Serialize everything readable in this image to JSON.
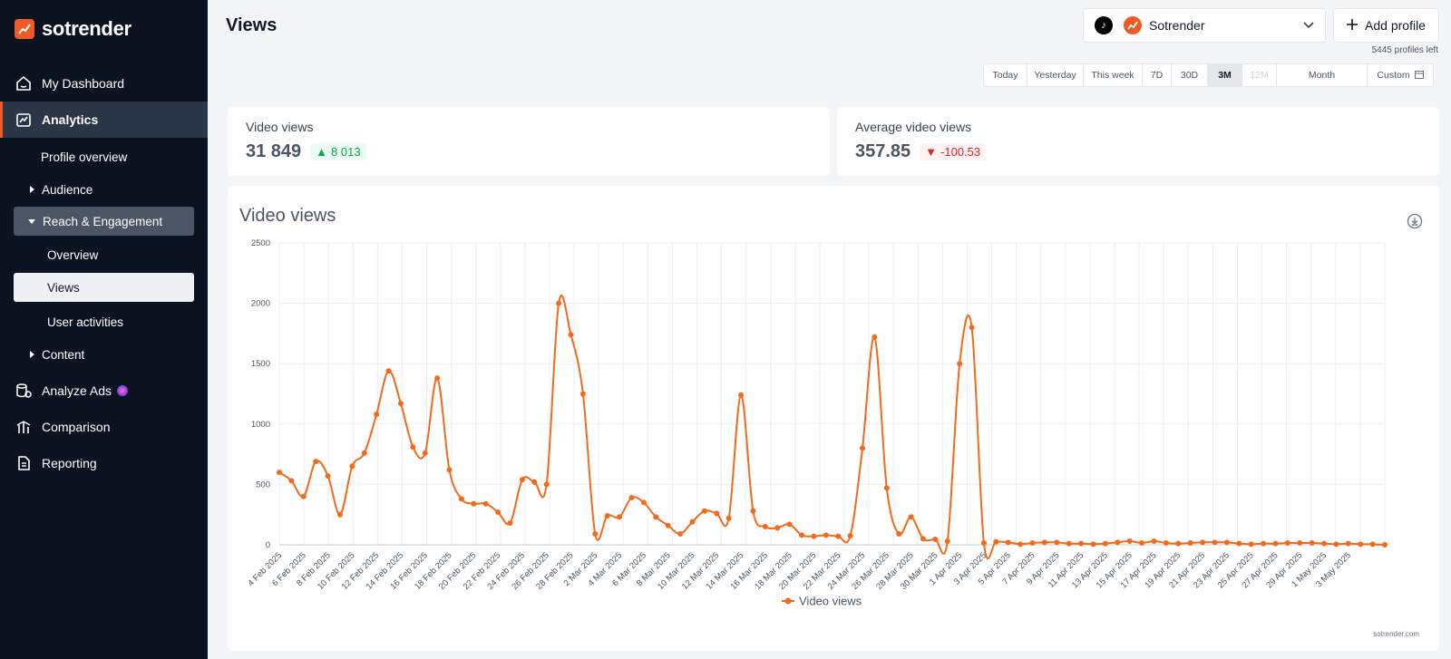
{
  "app": {
    "logo_text": "sotrender",
    "page_title": "Views"
  },
  "sidebar": {
    "items": [
      {
        "label": "My Dashboard",
        "icon": "home-icon"
      },
      {
        "label": "Analytics",
        "icon": "analytics-icon"
      },
      {
        "label": "Profile overview"
      },
      {
        "label": "Audience"
      },
      {
        "label": "Reach & Engagement"
      },
      {
        "label": "Overview"
      },
      {
        "label": "Views"
      },
      {
        "label": "User activities"
      },
      {
        "label": "Content"
      },
      {
        "label": "Analyze Ads",
        "icon": "ads-icon"
      },
      {
        "label": "Comparison",
        "icon": "comparison-icon"
      },
      {
        "label": "Reporting",
        "icon": "report-icon"
      }
    ]
  },
  "header": {
    "profile_name": "Sotrender",
    "add_profile_label": "Add profile",
    "profiles_left": "5445 profiles left",
    "ranges": [
      "Today",
      "Yesterday",
      "This week",
      "7D",
      "30D",
      "3M",
      "12M",
      "Month",
      "Custom"
    ],
    "selected_range": "3M",
    "disabled_range": "12M"
  },
  "kpis": {
    "video_views": {
      "label": "Video views",
      "value": "31 849",
      "change": "8 013"
    },
    "avg_video_views": {
      "label": "Average video views",
      "value": "357.85",
      "change": "-100.53"
    }
  },
  "colors": {
    "accent": "#f15a24",
    "series": "#f26a1b",
    "sidebar_bg": "#0b1220"
  },
  "chart_data": {
    "type": "line",
    "title": "Video views",
    "legend": [
      "Video views"
    ],
    "credit": "sotrender.com",
    "ylim": [
      0,
      2500
    ],
    "yticks": [
      0,
      500,
      1000,
      1500,
      2000,
      2500
    ],
    "xtick_labels": [
      "4 Feb 2025",
      "6 Feb 2025",
      "8 Feb 2025",
      "10 Feb 2025",
      "12 Feb 2025",
      "14 Feb 2025",
      "16 Feb 2025",
      "18 Feb 2025",
      "20 Feb 2025",
      "22 Feb 2025",
      "24 Feb 2025",
      "26 Feb 2025",
      "28 Feb 2025",
      "2 Mar 2025",
      "4 Mar 2025",
      "6 Mar 2025",
      "8 Mar 2025",
      "10 Mar 2025",
      "12 Mar 2025",
      "14 Mar 2025",
      "16 Mar 2025",
      "18 Mar 2025",
      "20 Mar 2025",
      "22 Mar 2025",
      "24 Mar 2025",
      "26 Mar 2025",
      "28 Mar 2025",
      "30 Mar 2025",
      "1 Apr 2025",
      "3 Apr 2025",
      "5 Apr 2025",
      "7 Apr 2025",
      "9 Apr 2025",
      "11 Apr 2025",
      "13 Apr 2025",
      "15 Apr 2025",
      "17 Apr 2025",
      "19 Apr 2025",
      "21 Apr 2025",
      "23 Apr 2025",
      "25 Apr 2025",
      "27 Apr 2025",
      "29 Apr 2025",
      "1 May 2025",
      "3 May 2025"
    ],
    "series": [
      {
        "name": "Video views",
        "values": [
          600,
          530,
          400,
          690,
          570,
          250,
          650,
          760,
          1080,
          1440,
          1170,
          810,
          760,
          1380,
          620,
          380,
          340,
          340,
          270,
          180,
          540,
          520,
          500,
          2000,
          1740,
          1250,
          90,
          240,
          230,
          390,
          350,
          230,
          160,
          90,
          190,
          280,
          260,
          220,
          1240,
          280,
          150,
          140,
          170,
          80,
          70,
          80,
          70,
          75,
          800,
          1720,
          470,
          90,
          230,
          50,
          45,
          30,
          1500,
          1800,
          15,
          25,
          20,
          5,
          15,
          20,
          20,
          10,
          10,
          5,
          10,
          20,
          30,
          15,
          30,
          15,
          10,
          15,
          20,
          20,
          20,
          10,
          5,
          10,
          10,
          15,
          15,
          15,
          10,
          5,
          10,
          5,
          5,
          0
        ]
      }
    ]
  }
}
